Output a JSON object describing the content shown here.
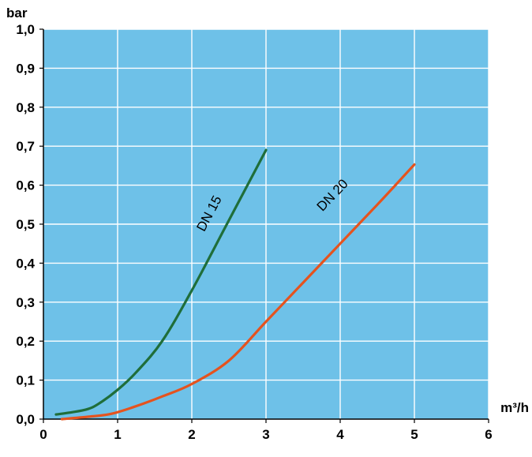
{
  "colors": {
    "plot_background": "#6EC1E8",
    "gridline": "#ffffff",
    "series_dn15": "#1F6E3A",
    "series_dn20": "#E5531E",
    "axis": "#000000"
  },
  "chart_data": {
    "type": "line",
    "title": "",
    "xlabel": "m³/h",
    "ylabel": "bar",
    "xlim": [
      0,
      6
    ],
    "ylim": [
      0,
      1.0
    ],
    "grid": true,
    "x_ticks": [
      0,
      1,
      2,
      3,
      4,
      5,
      6
    ],
    "x_tick_labels": [
      "0",
      "1",
      "2",
      "3",
      "4",
      "5",
      "6"
    ],
    "y_ticks": [
      0,
      0.1,
      0.2,
      0.3,
      0.4,
      0.5,
      0.6,
      0.7,
      0.8,
      0.9,
      1.0
    ],
    "y_tick_labels": [
      "0,0",
      "0,1",
      "0,2",
      "0,3",
      "0,4",
      "0,5",
      "0,6",
      "0,7",
      "0,8",
      "0,9",
      "1,0"
    ],
    "series": [
      {
        "name": "DN 15",
        "color_key": "series_dn15",
        "points": [
          [
            0.17,
            0.012
          ],
          [
            0.4,
            0.018
          ],
          [
            0.6,
            0.026
          ],
          [
            0.75,
            0.04
          ],
          [
            1.0,
            0.075
          ],
          [
            1.25,
            0.12
          ],
          [
            1.6,
            0.2
          ],
          [
            2.0,
            0.33
          ],
          [
            2.5,
            0.51
          ],
          [
            3.0,
            0.69
          ]
        ]
      },
      {
        "name": "DN 20",
        "color_key": "series_dn20",
        "points": [
          [
            0.25,
            0.0
          ],
          [
            0.6,
            0.006
          ],
          [
            0.9,
            0.013
          ],
          [
            1.2,
            0.03
          ],
          [
            1.6,
            0.058
          ],
          [
            2.0,
            0.09
          ],
          [
            2.5,
            0.15
          ],
          [
            3.0,
            0.25
          ],
          [
            3.5,
            0.35
          ],
          [
            4.0,
            0.45
          ],
          [
            4.5,
            0.55
          ],
          [
            5.0,
            0.653
          ]
        ]
      }
    ]
  }
}
